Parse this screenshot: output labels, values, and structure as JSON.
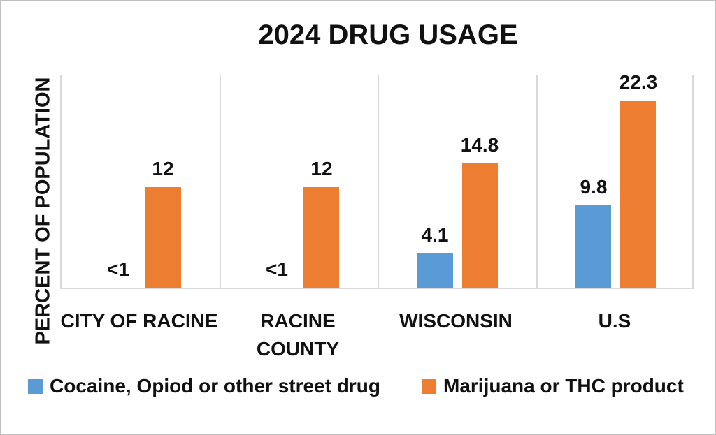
{
  "chart_data": {
    "type": "bar",
    "title": "2024 DRUG USAGE",
    "ylabel": "PERCENT OF POPULATION",
    "xlabel": "",
    "categories": [
      "CITY OF RACINE",
      "RACINE COUNTY",
      "WISCONSIN",
      "U.S"
    ],
    "category_display": [
      "CITY OF RACINE",
      "RACINE\nCOUNTY",
      "WISCONSIN",
      "U.S"
    ],
    "series": [
      {
        "name": "Cocaine, Opiod or other street drug",
        "color": "#5B9BD5",
        "labels": [
          "<1",
          "<1",
          "4.1",
          "9.8"
        ],
        "values": [
          0,
          0,
          4.1,
          9.8
        ]
      },
      {
        "name": "Marijuana or THC product",
        "color": "#ED7D31",
        "labels": [
          "12",
          "12",
          "14.8",
          "22.3"
        ],
        "values": [
          12,
          12,
          14.8,
          22.3
        ]
      }
    ],
    "ylim": [
      0,
      25.5
    ],
    "y_tick_labels_visible": false,
    "grid": "vertical category separators only",
    "legend_position": "bottom",
    "colors": {
      "series_blue": "#5B9BD5",
      "series_orange": "#ED7D31",
      "gridline": "#D9D9D9",
      "axis_line": "#D9D9D9",
      "text": "#111111",
      "background": "#FFFFFF",
      "outer_border": "#BFBFBF"
    }
  }
}
